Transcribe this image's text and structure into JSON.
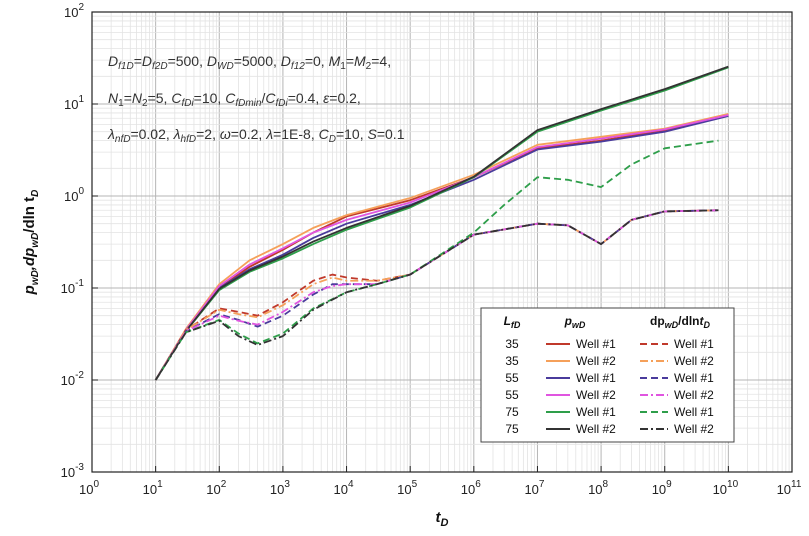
{
  "chart_data": {
    "type": "line",
    "x_scale": "log",
    "y_scale": "log",
    "xlim": [
      1,
      100000000000
    ],
    "ylim": [
      0.001,
      100
    ],
    "grid": true,
    "xlabel": "t_D",
    "ylabel": "p_wD, dp_wD/dln t_D",
    "x_ticks": [
      {
        "exp": 0
      },
      {
        "exp": 1
      },
      {
        "exp": 2
      },
      {
        "exp": 3
      },
      {
        "exp": 4
      },
      {
        "exp": 5
      },
      {
        "exp": 6
      },
      {
        "exp": 7
      },
      {
        "exp": 8
      },
      {
        "exp": 9
      },
      {
        "exp": 10
      },
      {
        "exp": 11
      }
    ],
    "y_ticks": [
      {
        "exp": -3
      },
      {
        "exp": -2
      },
      {
        "exp": -1
      },
      {
        "exp": 0
      },
      {
        "exp": 1
      },
      {
        "exp": 2
      }
    ],
    "annotations": [
      "D_f1D=D_f2D=500, D_WD=5000, D_f12=0, M_1=M_2=4,",
      "N_1=N_2=5, C_fDi=10, C_fDmin/C_fDi=0.4, ε=0.2,",
      "λ_nfD=0.02, λ_hfD=2, ω=0.2, λ=1E-8, C_D=10, S=0.1"
    ],
    "legend": {
      "placement": "bottom-right",
      "headers": [
        "L_fD",
        "p_wD",
        "dp_wD/dlnt_D"
      ],
      "rows": [
        {
          "lfd": "35",
          "p_label": "Well #1",
          "d_label": "Well #1",
          "p_color": "#c0392b",
          "d_color": "#c0392b",
          "d_dash": "dash"
        },
        {
          "lfd": "35",
          "p_label": "Well #2",
          "d_label": "Well #2",
          "p_color": "#f5a05a",
          "d_color": "#f5a05a",
          "d_dash": "dashdot"
        },
        {
          "lfd": "55",
          "p_label": "Well #1",
          "d_label": "Well #1",
          "p_color": "#4a3b9c",
          "d_color": "#4a3b9c",
          "d_dash": "dash"
        },
        {
          "lfd": "55",
          "p_label": "Well #2",
          "d_label": "Well #2",
          "p_color": "#e055e0",
          "d_color": "#e055e0",
          "d_dash": "dashdot"
        },
        {
          "lfd": "75",
          "p_label": "Well #1",
          "d_label": "Well #1",
          "p_color": "#2e9e4a",
          "d_color": "#2e9e4a",
          "d_dash": "dash"
        },
        {
          "lfd": "75",
          "p_label": "Well #2",
          "d_label": "Well #2",
          "p_color": "#333333",
          "d_color": "#333333",
          "d_dash": "dashdot"
        }
      ]
    },
    "series": [
      {
        "name": "L_fD=35 p_wD Well #1",
        "color": "#c0392b",
        "dash": "solid",
        "x": [
          10,
          30,
          100,
          300,
          1000,
          3000,
          10000,
          100000,
          1000000,
          10000000,
          100000000,
          1000000000,
          10000000000
        ],
        "y": [
          0.01,
          0.035,
          0.1,
          0.17,
          0.26,
          0.4,
          0.6,
          0.9,
          1.6,
          3.3,
          4.0,
          5.2,
          7.6
        ]
      },
      {
        "name": "L_fD=35 p_wD Well #2",
        "color": "#f5a05a",
        "dash": "solid",
        "x": [
          10,
          30,
          100,
          300,
          1000,
          3000,
          10000,
          100000,
          1000000,
          10000000,
          100000000,
          1000000000,
          10000000000
        ],
        "y": [
          0.01,
          0.036,
          0.11,
          0.2,
          0.3,
          0.45,
          0.62,
          0.95,
          1.7,
          3.6,
          4.4,
          5.4,
          7.8
        ]
      },
      {
        "name": "L_fD=55 p_wD Well #1",
        "color": "#4a3b9c",
        "dash": "solid",
        "x": [
          10,
          30,
          100,
          300,
          1000,
          3000,
          10000,
          100000,
          1000000,
          10000000,
          100000000,
          1000000000,
          10000000000
        ],
        "y": [
          0.01,
          0.035,
          0.1,
          0.16,
          0.23,
          0.35,
          0.5,
          0.8,
          1.5,
          3.2,
          3.9,
          5.0,
          7.4
        ]
      },
      {
        "name": "L_fD=55 p_wD Well #2",
        "color": "#e055e0",
        "dash": "solid",
        "x": [
          10,
          30,
          100,
          300,
          1000,
          3000,
          10000,
          100000,
          1000000,
          10000000,
          100000000,
          1000000000,
          10000000000
        ],
        "y": [
          0.01,
          0.035,
          0.105,
          0.18,
          0.27,
          0.4,
          0.55,
          0.85,
          1.6,
          3.4,
          4.2,
          5.3,
          7.6
        ]
      },
      {
        "name": "L_fD=75 p_wD Well #1",
        "color": "#2e9e4a",
        "dash": "solid",
        "x": [
          10,
          30,
          100,
          300,
          1000,
          3000,
          10000,
          100000,
          1000000,
          10000000,
          100000000,
          1000000000,
          10000000000
        ],
        "y": [
          0.01,
          0.034,
          0.095,
          0.15,
          0.21,
          0.3,
          0.43,
          0.75,
          1.6,
          5.0,
          8.5,
          14.0,
          25.0
        ]
      },
      {
        "name": "L_fD=75 p_wD Well #2",
        "color": "#333333",
        "dash": "solid",
        "x": [
          10,
          30,
          100,
          300,
          1000,
          3000,
          10000,
          100000,
          1000000,
          10000000,
          100000000,
          1000000000,
          10000000000
        ],
        "y": [
          0.01,
          0.034,
          0.098,
          0.155,
          0.22,
          0.32,
          0.45,
          0.78,
          1.62,
          5.2,
          8.8,
          14.5,
          25.5
        ]
      },
      {
        "name": "L_fD=35 dp Well #1",
        "color": "#c0392b",
        "dash": "dash",
        "x": [
          10,
          30,
          100,
          200,
          400,
          1000,
          3000,
          6000,
          10000,
          30000,
          100000,
          1000000,
          10000000,
          30000000,
          100000000,
          300000000,
          1000000000,
          7000000000
        ],
        "y": [
          0.01,
          0.035,
          0.06,
          0.055,
          0.05,
          0.07,
          0.12,
          0.14,
          0.13,
          0.12,
          0.14,
          0.38,
          0.5,
          0.48,
          0.3,
          0.55,
          0.68,
          0.7
        ]
      },
      {
        "name": "L_fD=35 dp Well #2",
        "color": "#f5a05a",
        "dash": "dashdot",
        "x": [
          10,
          30,
          100,
          200,
          400,
          1000,
          3000,
          6000,
          10000,
          30000,
          100000,
          1000000,
          10000000,
          30000000,
          100000000,
          300000000,
          1000000000,
          7000000000
        ],
        "y": [
          0.01,
          0.035,
          0.058,
          0.052,
          0.048,
          0.065,
          0.11,
          0.13,
          0.12,
          0.12,
          0.14,
          0.38,
          0.5,
          0.48,
          0.3,
          0.55,
          0.68,
          0.7
        ]
      },
      {
        "name": "L_fD=55 dp Well #1",
        "color": "#4a3b9c",
        "dash": "dash",
        "x": [
          10,
          30,
          100,
          200,
          400,
          1000,
          3000,
          6000,
          10000,
          30000,
          100000,
          1000000,
          10000000,
          30000000,
          100000000,
          300000000,
          1000000000,
          7000000000
        ],
        "y": [
          0.01,
          0.034,
          0.052,
          0.045,
          0.038,
          0.05,
          0.085,
          0.11,
          0.11,
          0.11,
          0.14,
          0.38,
          0.5,
          0.48,
          0.3,
          0.55,
          0.68,
          0.7
        ]
      },
      {
        "name": "L_fD=55 dp Well #2",
        "color": "#e055e0",
        "dash": "dashdot",
        "x": [
          10,
          30,
          100,
          200,
          400,
          1000,
          3000,
          6000,
          10000,
          30000,
          100000,
          1000000,
          10000000,
          30000000,
          100000000,
          300000000,
          1000000000,
          7000000000
        ],
        "y": [
          0.01,
          0.034,
          0.05,
          0.044,
          0.04,
          0.055,
          0.09,
          0.105,
          0.11,
          0.11,
          0.14,
          0.38,
          0.5,
          0.48,
          0.3,
          0.55,
          0.68,
          0.7
        ]
      },
      {
        "name": "L_fD=75 dp Well #1",
        "color": "#2e9e4a",
        "dash": "dash",
        "x": [
          10,
          30,
          100,
          200,
          400,
          1000,
          3000,
          10000,
          30000,
          100000,
          1000000,
          3000000,
          10000000,
          30000000,
          100000000,
          300000000,
          1000000000,
          7000000000
        ],
        "y": [
          0.01,
          0.033,
          0.045,
          0.032,
          0.025,
          0.032,
          0.06,
          0.09,
          0.11,
          0.14,
          0.4,
          0.8,
          1.6,
          1.5,
          1.25,
          2.2,
          3.3,
          4.0
        ]
      },
      {
        "name": "L_fD=75 dp Well #2",
        "color": "#333333",
        "dash": "dashdot",
        "x": [
          10,
          30,
          100,
          200,
          400,
          1000,
          3000,
          10000,
          30000,
          100000,
          1000000,
          10000000,
          30000000,
          100000000,
          300000000,
          1000000000,
          7000000000
        ],
        "y": [
          0.01,
          0.033,
          0.044,
          0.03,
          0.024,
          0.03,
          0.058,
          0.09,
          0.11,
          0.14,
          0.38,
          0.5,
          0.48,
          0.3,
          0.55,
          0.68,
          0.7
        ]
      }
    ]
  }
}
